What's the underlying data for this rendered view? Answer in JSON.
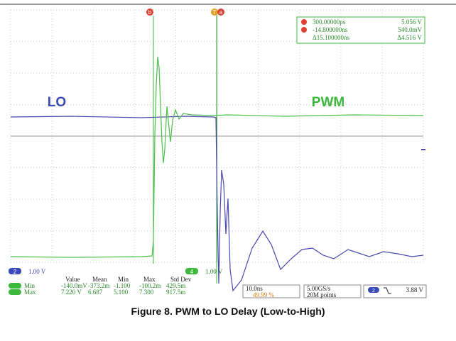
{
  "screen": {
    "markers": {
      "b": "b",
      "trigger": "T",
      "a": "a"
    },
    "cursor_readout": [
      [
        "300.00000ps",
        "5.056 V"
      ],
      [
        "-14.800000ns",
        "540.0mV"
      ],
      [
        "Δ15.100000ns",
        "Δ4.516 V"
      ]
    ],
    "trace_labels": {
      "lo": "LO",
      "pwm": "PWM"
    },
    "channels": {
      "ch2": {
        "number": "2",
        "scale": "1.00 V"
      },
      "ch4": {
        "number": "4",
        "scale": "1.00 V"
      }
    },
    "measurements": {
      "headers": [
        "Value",
        "Mean",
        "Min",
        "Max",
        "Std Dev"
      ],
      "rows": [
        {
          "label": "Min",
          "cells": [
            "-140.0mV",
            "-373.2m",
            "-1.100",
            "-100.2m",
            "429.5m"
          ]
        },
        {
          "label": "Max",
          "cells": [
            "7.220 V",
            "6.687",
            "5.100",
            "7.300",
            "917.5m"
          ]
        }
      ]
    },
    "timebase": {
      "scale": "10.0ns",
      "position": "49.99 %"
    },
    "acquisition": {
      "rate": "5.00GS/s",
      "length": "20M points"
    },
    "trigger": {
      "channel": "2",
      "level": "3.88 V"
    }
  },
  "caption": "Figure 8. PWM to LO Delay (Low-to-High)"
}
